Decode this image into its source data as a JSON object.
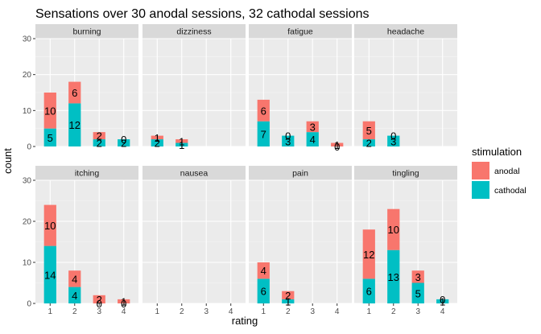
{
  "chart_data": {
    "type": "bar",
    "stacked": true,
    "faceted": true,
    "title": "Sensations over 30 anodal sessions, 32 cathodal sessions",
    "xlabel": "rating",
    "ylabel": "count",
    "ylim": [
      0,
      30
    ],
    "yticks": [
      "0",
      "10",
      "20",
      "30"
    ],
    "x": [
      "1",
      "2",
      "3",
      "4"
    ],
    "legend": {
      "title": "stimulation",
      "position": "right",
      "entries": [
        {
          "name": "anodal",
          "color": "#F8766D"
        },
        {
          "name": "cathodal",
          "color": "#00BFC4"
        }
      ]
    },
    "panel_background": "#EBEBEB",
    "strip_background": "#D9D9D9",
    "grid": true,
    "facets": [
      {
        "name": "burning",
        "anodal": [
          10,
          6,
          2,
          0
        ],
        "cathodal": [
          5,
          12,
          2,
          2
        ],
        "show_label": [
          true,
          true,
          true,
          true
        ]
      },
      {
        "name": "dizziness",
        "anodal": [
          1,
          1,
          0,
          0
        ],
        "cathodal": [
          2,
          1,
          0,
          0
        ],
        "show_label": [
          true,
          true,
          false,
          false
        ]
      },
      {
        "name": "fatigue",
        "anodal": [
          6,
          0,
          3,
          1
        ],
        "cathodal": [
          7,
          3,
          4,
          0
        ],
        "show_label": [
          true,
          true,
          true,
          true
        ]
      },
      {
        "name": "headache",
        "anodal": [
          5,
          0,
          0,
          0
        ],
        "cathodal": [
          2,
          3,
          0,
          0
        ],
        "show_label": [
          true,
          true,
          false,
          false
        ]
      },
      {
        "name": "itching",
        "anodal": [
          10,
          4,
          2,
          1
        ],
        "cathodal": [
          14,
          4,
          0,
          0
        ],
        "show_label": [
          true,
          true,
          true,
          true
        ]
      },
      {
        "name": "nausea",
        "anodal": [
          0,
          0,
          0,
          0
        ],
        "cathodal": [
          0,
          0,
          0,
          0
        ],
        "show_label": [
          false,
          false,
          false,
          false
        ]
      },
      {
        "name": "pain",
        "anodal": [
          4,
          2,
          0,
          0
        ],
        "cathodal": [
          6,
          1,
          0,
          0
        ],
        "show_label": [
          true,
          true,
          false,
          false
        ]
      },
      {
        "name": "tingling",
        "anodal": [
          12,
          10,
          3,
          0
        ],
        "cathodal": [
          6,
          13,
          5,
          1
        ],
        "show_label": [
          true,
          true,
          true,
          true
        ]
      }
    ]
  }
}
